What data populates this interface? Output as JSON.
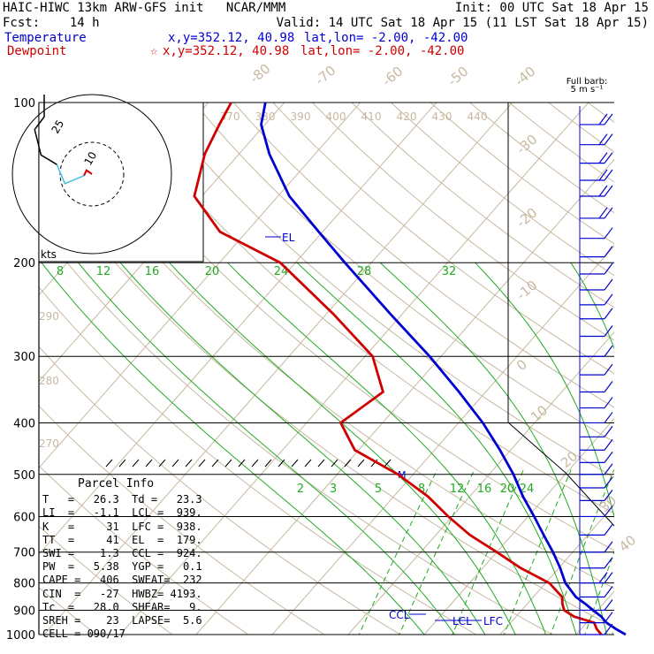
{
  "header": {
    "title_left": "HAIC-HIWC 13km ARW-GFS init   NCAR/MMM",
    "init": "Init: 00 UTC Sat 18 Apr 15",
    "fcst": "Fcst:    14 h",
    "valid": "Valid: 14 UTC Sat 18 Apr 15 (11 LST Sat 18 Apr 15)",
    "temp_label": "Temperature",
    "temp_xy": "x,y=352.12, 40.98",
    "temp_latlon": "lat,lon= -2.00, -42.00",
    "dew_label": "Dewpoint",
    "dew_xy": "x,y=352.12, 40.98",
    "dew_latlon": "lat,lon= -2.00, -42.00",
    "colors": {
      "temp": "#0000d0",
      "dew": "#d00000"
    }
  },
  "barb_key": {
    "line1": "Full barb:",
    "line2": "5 m s⁻¹"
  },
  "hodograph": {
    "units": "kts",
    "ring_labels": [
      "25",
      "10"
    ]
  },
  "parcel_info": {
    "title": "Parcel Info",
    "rows": [
      "T   =   26.3  Td =   23.3",
      "LI  =   -1.1  LCL =  939.",
      "K   =     31  LFC =  938.",
      "TT  =     41  EL  =  179.",
      "SWI =    1.3  CCL =  924.",
      "PW  =   5.38  YGP =   0.1",
      "CAPE =   406  SWEAT=  232",
      "CIN  =   -27  HWBZ= 4193.",
      "Tc  =   28.0  SHEAR=   9.",
      "SREH =    23  LAPSE=  5.6",
      "CELL = 090/17"
    ]
  },
  "chart_data": {
    "type": "line",
    "subtype": "skew-T log-p",
    "y_axis": {
      "label": "",
      "scale": "log",
      "direction": "pressure decreasing upward",
      "ticks": [
        "100",
        "200",
        "300",
        "400",
        "500",
        "600",
        "700",
        "800",
        "900",
        "1000"
      ]
    },
    "temperature_axis_labels": [
      "-80",
      "-70",
      "-60",
      "-50",
      "-40",
      "-30",
      "-20",
      "-10",
      "0",
      "10",
      "20",
      "30",
      "40"
    ],
    "theta_e_labels": [
      "370",
      "380",
      "390",
      "400",
      "410",
      "420",
      "430",
      "440"
    ],
    "theta_labels": [
      "290",
      "280",
      "270"
    ],
    "mixing_ratio_labels_upper": [
      "8",
      "12",
      "16",
      "20",
      "24",
      "28",
      "32"
    ],
    "mixing_ratio_labels_lower": [
      "2",
      "3",
      "5",
      "8",
      "12",
      "16",
      "20",
      "24"
    ],
    "level_labels": [
      "EL",
      "CCL",
      "LCL",
      "LFC"
    ],
    "series": [
      {
        "name": "Temperature",
        "color": "#0000d0",
        "pressure": [
          1000,
          975,
          950,
          925,
          900,
          875,
          850,
          800,
          750,
          700,
          650,
          600,
          550,
          500,
          450,
          400,
          350,
          300,
          250,
          200,
          175,
          150,
          125,
          110,
          100
        ],
        "temp_c": [
          26.5,
          24.5,
          22.6,
          21.2,
          19.4,
          17.6,
          15.6,
          12.6,
          10.2,
          7.4,
          4.2,
          0.8,
          -3.0,
          -6.8,
          -11.4,
          -16.8,
          -23.5,
          -31.5,
          -41.5,
          -53.5,
          -60.5,
          -68.5,
          -76.0,
          -80.5,
          -82.5
        ]
      },
      {
        "name": "Dewpoint",
        "color": "#d00000",
        "pressure": [
          1000,
          975,
          950,
          925,
          900,
          875,
          850,
          800,
          750,
          700,
          650,
          600,
          550,
          500,
          450,
          400,
          350,
          300,
          250,
          200,
          175,
          150,
          125,
          110,
          100
        ],
        "temp_c": [
          23.3,
          22.0,
          21.0,
          17.6,
          15.6,
          14.6,
          13.8,
          10.5,
          5.0,
          0.0,
          -5.5,
          -10.5,
          -15.5,
          -22.0,
          -30.5,
          -35.5,
          -33.5,
          -39.0,
          -49.0,
          -62.0,
          -73.5,
          -81.0,
          -84.5,
          -86.0,
          -87.0
        ]
      }
    ],
    "hodograph_data": {
      "trace": [
        [
          0,
          0
        ],
        [
          -1.7,
          1.2
        ],
        [
          -2.5,
          -0.5
        ],
        [
          -8.5,
          -3
        ],
        [
          -11,
          3
        ],
        [
          -16,
          6
        ],
        [
          -18,
          14
        ],
        [
          -15,
          18
        ],
        [
          -15,
          25
        ]
      ]
    },
    "wind_barbs": {
      "pressure": [
        110,
        120,
        130,
        140,
        150,
        165,
        180,
        195,
        210,
        225,
        240,
        255,
        275,
        300,
        325,
        350,
        375,
        400,
        425,
        450,
        475,
        500,
        530,
        560,
        600,
        650,
        700,
        750,
        800,
        850,
        900,
        950,
        1000
      ],
      "speed_ms": [
        10,
        10,
        10,
        10,
        10,
        10,
        5,
        5,
        5,
        5,
        5,
        5,
        5,
        5,
        5,
        5,
        5,
        5,
        5,
        5,
        5,
        5,
        5,
        5,
        5,
        5,
        5,
        5,
        10,
        5,
        5,
        5,
        5
      ]
    }
  }
}
